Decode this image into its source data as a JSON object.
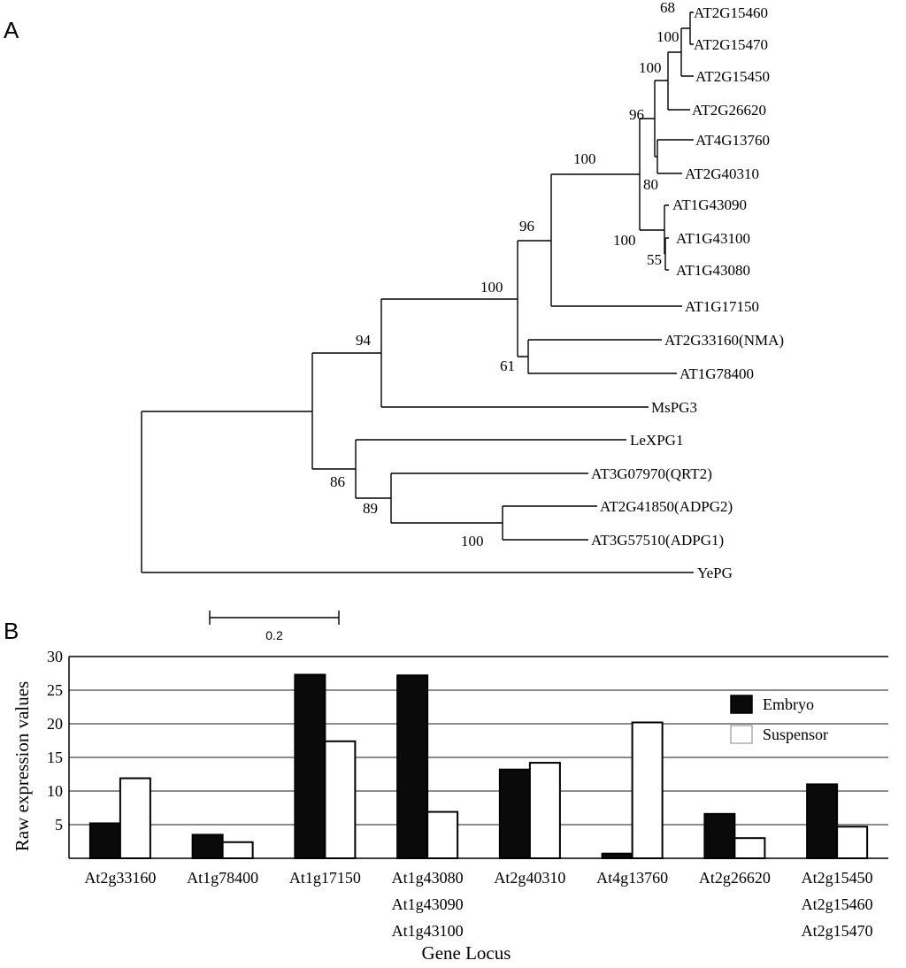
{
  "panel_a": {
    "label": "A",
    "leaves": [
      "AT2G15460",
      "AT2G15470",
      "AT2G15450",
      "AT2G26620",
      "AT4G13760",
      "AT2G40310",
      "AT1G43090",
      "AT1G43100",
      "AT1G43080",
      "AT1G17150",
      "AT2G33160(NMA)",
      "AT1G78400",
      "MsPG3",
      "LeXPG1",
      "AT3G07970(QRT2)",
      "AT2G41850(ADPG2)",
      "AT3G57510(ADPG1)",
      "YePG"
    ],
    "bootstrap": [
      "68",
      "100",
      "100",
      "96",
      "80",
      "100",
      "55",
      "100",
      "96",
      "100",
      "61",
      "94",
      "86",
      "89",
      "100"
    ],
    "scale_bar_label": "0.2"
  },
  "panel_b": {
    "label": "B"
  },
  "chart_data": {
    "type": "bar",
    "title": "",
    "xlabel": "Gene Locus",
    "ylabel": "Raw expression values",
    "ylim": [
      0,
      30
    ],
    "yticks": [
      5,
      10,
      15,
      20,
      25,
      30
    ],
    "grid": true,
    "legend_position": "top-right",
    "categories": [
      [
        "At2g33160"
      ],
      [
        "At1g78400"
      ],
      [
        "At1g17150"
      ],
      [
        "At1g43080",
        "At1g43090",
        "At1g43100"
      ],
      [
        "At2g40310"
      ],
      [
        "At4g13760"
      ],
      [
        "At2g26620"
      ],
      [
        "At2g15450",
        "At2g15460",
        "At2g15470"
      ]
    ],
    "series": [
      {
        "name": "Embryo",
        "color": "#0a0a0a",
        "values": [
          5.2,
          3.5,
          27.3,
          27.2,
          13.2,
          0.7,
          6.6,
          11.0
        ]
      },
      {
        "name": "Suspensor",
        "color": "#ffffff",
        "values": [
          11.9,
          2.4,
          17.4,
          6.9,
          14.2,
          20.2,
          3.0,
          4.7
        ]
      }
    ]
  }
}
